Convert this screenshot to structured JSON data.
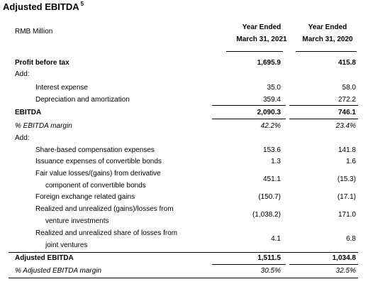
{
  "title": "Adjusted EBITDA",
  "title_note": "5",
  "unit": "RMB Million",
  "columns": [
    {
      "line1": "Year Ended",
      "line2": "March 31, 2021"
    },
    {
      "line1": "Year Ended",
      "line2": "March 31, 2020"
    }
  ],
  "rows": [
    {
      "label": "Profit before tax",
      "v1": "1,695.9",
      "v2": "415.8"
    },
    {
      "label": "Add:"
    },
    {
      "label": "Interest expense",
      "v1": "35.0",
      "v2": "58.0"
    },
    {
      "label": "Depreciation and amortization",
      "v1": "359.4",
      "v2": "272.2"
    },
    {
      "label": "EBITDA",
      "v1": "2,090.3",
      "v2": "746.1"
    },
    {
      "label": "% EBITDA margin",
      "v1": "42.2%",
      "v2": "23.4%"
    },
    {
      "label": "Add:"
    },
    {
      "label": "Share-based compensation expenses",
      "v1": "153.6",
      "v2": "141.8"
    },
    {
      "label": "Issuance expenses of convertible bonds",
      "v1": "1.3",
      "v2": "1.6"
    },
    {
      "label": "Fair value losses/(gains) from derivative",
      "label2": "component of convertible bonds",
      "v1": "451.1",
      "v2": "(15.3)"
    },
    {
      "label": "Foreign exchange related gains",
      "v1": "(150.7)",
      "v2": "(17.1)"
    },
    {
      "label": "Realized and unrealized (gains)/losses from",
      "label2": "venture investments",
      "v1": "(1,038.2)",
      "v2": "171.0"
    },
    {
      "label": "Realized and unrealized share of losses from",
      "label2": "joint ventures",
      "v1": "4.1",
      "v2": "6.8"
    },
    {
      "label": "Adjusted EBITDA",
      "v1": "1,511.5",
      "v2": "1,034.8"
    },
    {
      "label": "% Adjusted EBITDA margin",
      "v1": "30.5%",
      "v2": "32.5%"
    }
  ]
}
